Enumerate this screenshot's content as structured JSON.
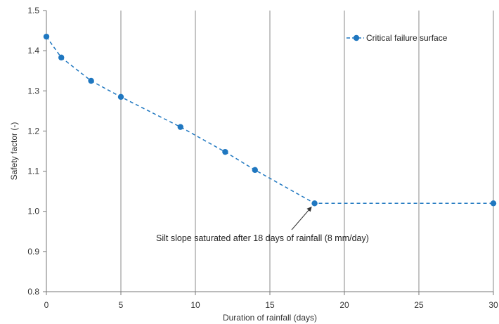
{
  "chart_data": {
    "type": "line",
    "xlabel": "Duration of rainfall (days)",
    "ylabel": "Safety factor (-)",
    "xlim": [
      0,
      30
    ],
    "ylim": [
      0.8,
      1.5
    ],
    "x_ticks": [
      0,
      5,
      10,
      15,
      20,
      25,
      30
    ],
    "y_ticks": [
      0.8,
      0.9,
      1.0,
      1.1,
      1.2,
      1.3,
      1.4,
      1.5
    ],
    "grid": "vertical",
    "legend_position": "top-right",
    "series": [
      {
        "name": "Critical failure surface",
        "color": "#1F77C0",
        "line_style": "dashed",
        "x": [
          0,
          1,
          3,
          5,
          9,
          12,
          14,
          18,
          30
        ],
        "y": [
          1.435,
          1.383,
          1.325,
          1.285,
          1.21,
          1.148,
          1.103,
          1.02,
          1.02
        ]
      }
    ],
    "annotations": [
      {
        "text": "Silt slope saturated after 18 days of rainfall (8 mm/day)",
        "target_x": 18,
        "target_y": 1.02
      }
    ]
  }
}
